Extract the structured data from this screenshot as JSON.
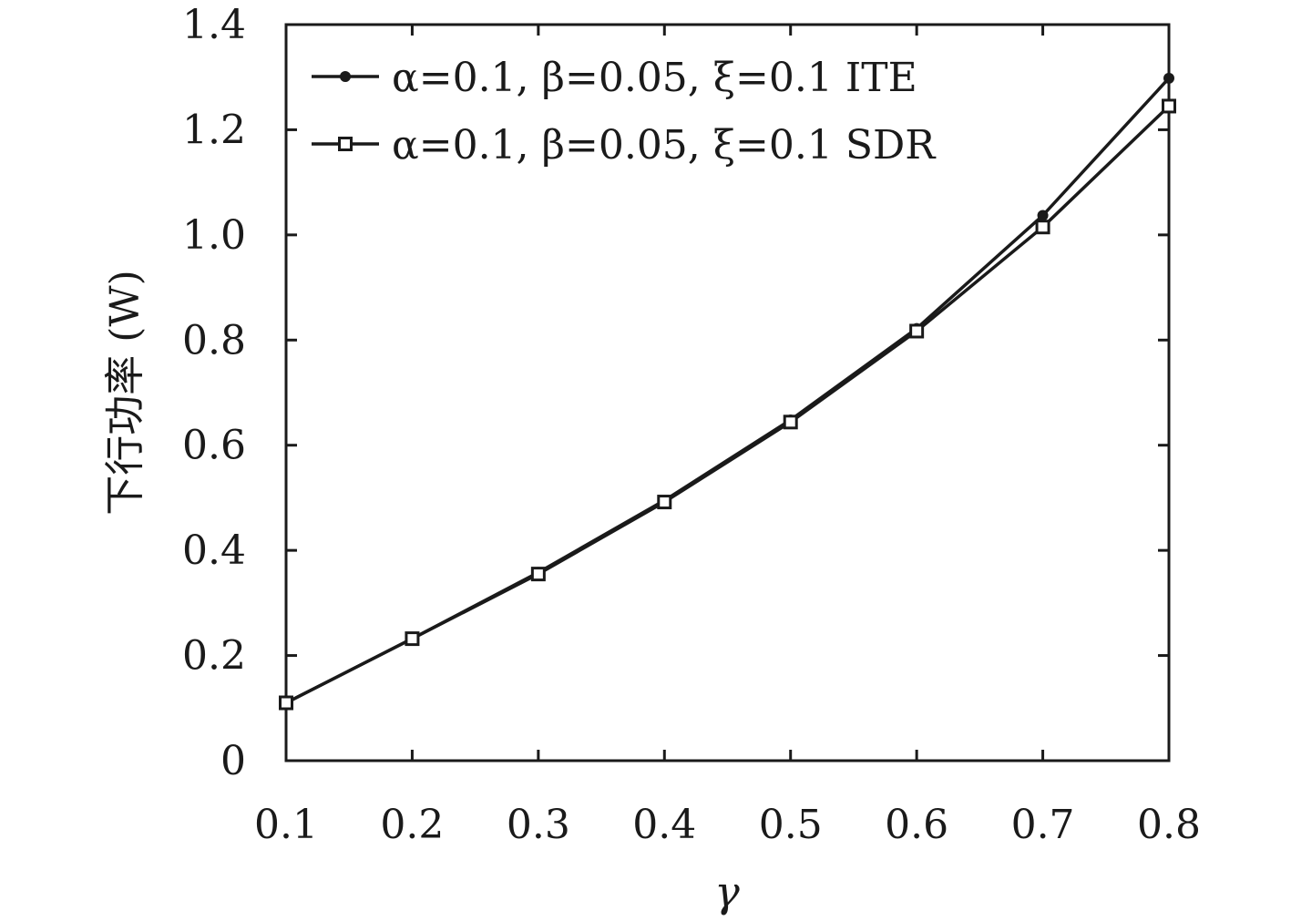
{
  "chart_data": {
    "type": "line",
    "title": "",
    "xlabel": "γ",
    "ylabel": "下行功率 (W)",
    "xlim": [
      0.1,
      0.8
    ],
    "ylim": [
      0,
      1.4
    ],
    "x_ticks": [
      "0.1",
      "0.2",
      "0.3",
      "0.4",
      "0.5",
      "0.6",
      "0.7",
      "0.8"
    ],
    "y_ticks": [
      "0",
      "0.2",
      "0.4",
      "0.6",
      "0.8",
      "1.0",
      "1.2",
      "1.4"
    ],
    "x": [
      0.1,
      0.2,
      0.3,
      0.4,
      0.5,
      0.6,
      0.7,
      0.8
    ],
    "grid": false,
    "legend_position": "top-left",
    "series": [
      {
        "name": "α=0.1, β=0.05, ξ=0.1 ITE",
        "marker": "filled-circle",
        "color": "#1a1a1a",
        "values": [
          0.11,
          0.232,
          0.358,
          0.495,
          0.648,
          0.822,
          1.037,
          1.298
        ]
      },
      {
        "name": "α=0.1, β=0.05, ξ=0.1 SDR",
        "marker": "open-square",
        "color": "#1a1a1a",
        "values": [
          0.11,
          0.232,
          0.355,
          0.492,
          0.644,
          0.817,
          1.015,
          1.245
        ]
      }
    ]
  }
}
